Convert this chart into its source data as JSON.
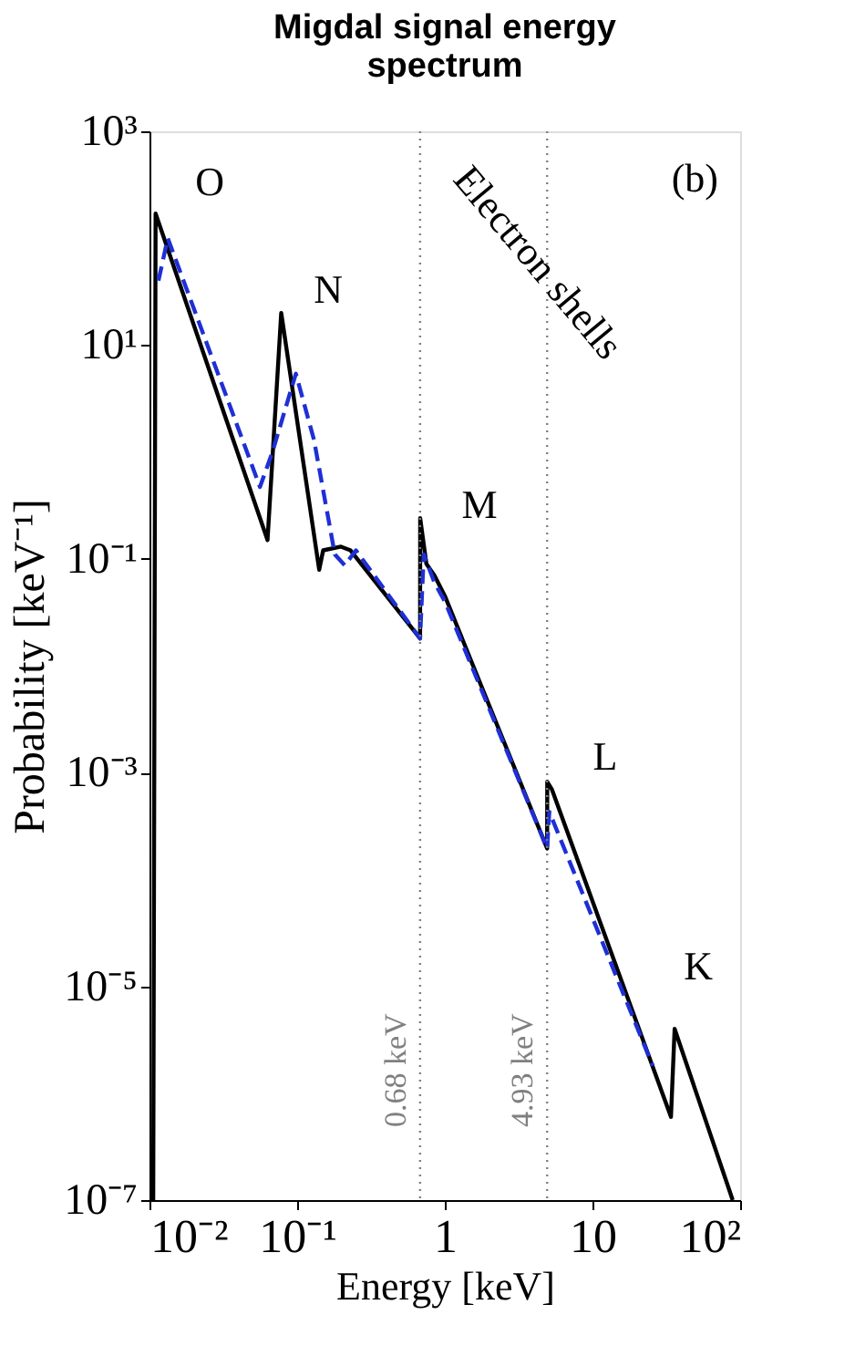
{
  "chart_data": {
    "type": "line",
    "title": [
      "Migdal signal energy",
      "spectrum"
    ],
    "xlabel": "Energy [keV]",
    "ylabel": "Probability [keV⁻¹]",
    "log": "xy",
    "grid": false,
    "xlim": [
      0.01,
      100
    ],
    "ylim": [
      1e-07,
      1000
    ],
    "xticks": [
      {
        "value": 0.01,
        "label": "10⁻²"
      },
      {
        "value": 0.1,
        "label": "10⁻¹"
      },
      1,
      10,
      {
        "value": 100,
        "label": "10²"
      }
    ],
    "yticks": [
      {
        "value": 1e-07,
        "label": "10⁻⁷"
      },
      {
        "value": 1e-05,
        "label": "10⁻⁵"
      },
      {
        "value": 0.001,
        "label": "10⁻³"
      },
      {
        "value": 0.1,
        "label": "10⁻¹"
      },
      {
        "value": 10,
        "label": "10¹"
      },
      {
        "value": 1000,
        "label": "10³"
      }
    ],
    "series": [
      {
        "color": "#000000",
        "line_style": "solid",
        "x": [
          0.0106,
          0.011,
          0.063,
          0.078,
          0.141,
          0.15,
          0.198,
          0.23,
          0.68,
          0.681,
          0.75,
          0.85,
          1.0,
          4.93,
          4.94,
          5.3,
          34,
          36,
          89
        ],
        "values": [
          1e-07,
          170,
          0.15,
          20,
          0.079,
          0.12,
          0.13,
          0.12,
          0.018,
          0.24,
          0.09,
          0.07,
          0.045,
          0.000195,
          0.00082,
          0.0007,
          6e-07,
          4e-06,
          1e-07
        ]
      },
      {
        "color": "#1f2fd6",
        "line_style": "dashed",
        "x": [
          0.0115,
          0.0133,
          0.056,
          0.068,
          0.098,
          0.13,
          0.18,
          0.21,
          0.25,
          0.68,
          0.72,
          0.85,
          1.0,
          4.93,
          5.1,
          25.6
        ],
        "values": [
          40,
          100,
          0.47,
          1.0,
          5.4,
          1.3,
          0.11,
          0.087,
          0.12,
          0.018,
          0.11,
          0.06,
          0.04,
          0.000195,
          0.00043,
          1.8e-06
        ]
      }
    ],
    "ref_lines": [
      {
        "axis": "x",
        "value": 0.68,
        "label": "0.68 keV",
        "color": "#808080",
        "line_style": "dotted"
      },
      {
        "axis": "x",
        "value": 4.93,
        "label": "4.93 keV",
        "color": "#808080",
        "line_style": "dotted"
      }
    ],
    "annotations": [
      "O",
      "N",
      "M",
      "L",
      "K",
      "(b)",
      "Electron shells"
    ]
  }
}
